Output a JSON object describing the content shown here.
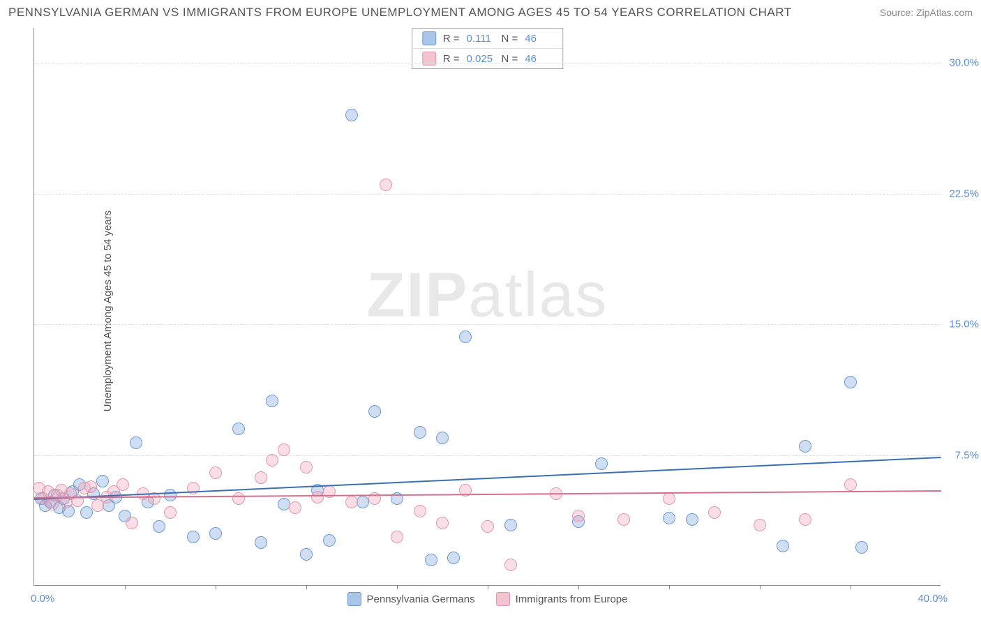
{
  "title": "PENNSYLVANIA GERMAN VS IMMIGRANTS FROM EUROPE UNEMPLOYMENT AMONG AGES 45 TO 54 YEARS CORRELATION CHART",
  "source": "Source: ZipAtlas.com",
  "ylabel": "Unemployment Among Ages 45 to 54 years",
  "watermark_bold": "ZIP",
  "watermark_light": "atlas",
  "chart": {
    "type": "scatter",
    "xlim": [
      0,
      40
    ],
    "ylim": [
      0,
      32
    ],
    "x_left_label": "0.0%",
    "x_right_label": "40.0%",
    "ytick_labels": [
      {
        "v": 7.5,
        "t": "7.5%"
      },
      {
        "v": 15.0,
        "t": "15.0%"
      },
      {
        "v": 22.5,
        "t": "22.5%"
      },
      {
        "v": 30.0,
        "t": "30.0%"
      }
    ],
    "xtick_positions": [
      4,
      8,
      12,
      16,
      20,
      24,
      28,
      32,
      36
    ],
    "grid_color": "#dddddd",
    "axis_color": "#888888",
    "background_color": "#ffffff",
    "marker_radius": 9,
    "marker_border_width": 1.5,
    "series": [
      {
        "name": "Pennsylvania Germans",
        "fill": "rgba(120,160,220,0.35)",
        "stroke": "#6b9bd1",
        "swatch_fill": "#a9c5e8",
        "swatch_border": "#6b9bd1",
        "R": "0.111",
        "N": "46",
        "trend": {
          "x1": 0,
          "y1": 5.0,
          "x2": 40,
          "y2": 7.4,
          "color": "#3a6fb5"
        },
        "points": [
          [
            0.3,
            5.0
          ],
          [
            0.5,
            4.6
          ],
          [
            0.7,
            4.8
          ],
          [
            0.9,
            5.2
          ],
          [
            1.1,
            4.5
          ],
          [
            1.3,
            5.0
          ],
          [
            1.5,
            4.3
          ],
          [
            1.7,
            5.4
          ],
          [
            2.0,
            5.8
          ],
          [
            2.3,
            4.2
          ],
          [
            2.6,
            5.3
          ],
          [
            3.0,
            6.0
          ],
          [
            3.3,
            4.6
          ],
          [
            3.6,
            5.1
          ],
          [
            4.0,
            4.0
          ],
          [
            4.5,
            8.2
          ],
          [
            5.0,
            4.8
          ],
          [
            5.5,
            3.4
          ],
          [
            6.0,
            5.2
          ],
          [
            7.0,
            2.8
          ],
          [
            8.0,
            3.0
          ],
          [
            9.0,
            9.0
          ],
          [
            10.0,
            2.5
          ],
          [
            10.5,
            10.6
          ],
          [
            11.0,
            4.7
          ],
          [
            12.0,
            1.8
          ],
          [
            12.5,
            5.5
          ],
          [
            13.0,
            2.6
          ],
          [
            14.0,
            27.0
          ],
          [
            14.5,
            4.8
          ],
          [
            15.0,
            10.0
          ],
          [
            16.0,
            5.0
          ],
          [
            17.0,
            8.8
          ],
          [
            17.5,
            1.5
          ],
          [
            18.0,
            8.5
          ],
          [
            18.5,
            1.6
          ],
          [
            19.0,
            14.3
          ],
          [
            21.0,
            3.5
          ],
          [
            24.0,
            3.7
          ],
          [
            25.0,
            7.0
          ],
          [
            28.0,
            3.9
          ],
          [
            29.0,
            3.8
          ],
          [
            33.0,
            2.3
          ],
          [
            34.0,
            8.0
          ],
          [
            36.0,
            11.7
          ],
          [
            36.5,
            2.2
          ]
        ]
      },
      {
        "name": "Immigrants from Europe",
        "fill": "rgba(240,160,180,0.35)",
        "stroke": "#e198ac",
        "swatch_fill": "#f3c3cf",
        "swatch_border": "#e198ac",
        "R": "0.025",
        "N": "46",
        "trend": {
          "x1": 0,
          "y1": 5.1,
          "x2": 40,
          "y2": 5.5,
          "color": "#d66f8c"
        },
        "points": [
          [
            0.2,
            5.6
          ],
          [
            0.4,
            5.0
          ],
          [
            0.6,
            5.4
          ],
          [
            0.8,
            4.7
          ],
          [
            1.0,
            5.2
          ],
          [
            1.2,
            5.5
          ],
          [
            1.4,
            4.8
          ],
          [
            1.6,
            5.3
          ],
          [
            1.9,
            4.9
          ],
          [
            2.2,
            5.6
          ],
          [
            2.5,
            5.7
          ],
          [
            2.8,
            4.6
          ],
          [
            3.2,
            5.1
          ],
          [
            3.5,
            5.4
          ],
          [
            3.9,
            5.8
          ],
          [
            4.3,
            3.6
          ],
          [
            4.8,
            5.3
          ],
          [
            5.3,
            5.0
          ],
          [
            6.0,
            4.2
          ],
          [
            7.0,
            5.6
          ],
          [
            8.0,
            6.5
          ],
          [
            9.0,
            5.0
          ],
          [
            10.0,
            6.2
          ],
          [
            10.5,
            7.2
          ],
          [
            11.0,
            7.8
          ],
          [
            11.5,
            4.5
          ],
          [
            12.0,
            6.8
          ],
          [
            12.5,
            5.1
          ],
          [
            13.0,
            5.4
          ],
          [
            14.0,
            4.8
          ],
          [
            15.0,
            5.0
          ],
          [
            15.5,
            23.0
          ],
          [
            16.0,
            2.8
          ],
          [
            17.0,
            4.3
          ],
          [
            18.0,
            3.6
          ],
          [
            19.0,
            5.5
          ],
          [
            20.0,
            3.4
          ],
          [
            21.0,
            1.2
          ],
          [
            23.0,
            5.3
          ],
          [
            24.0,
            4.0
          ],
          [
            26.0,
            3.8
          ],
          [
            28.0,
            5.0
          ],
          [
            30.0,
            4.2
          ],
          [
            32.0,
            3.5
          ],
          [
            34.0,
            3.8
          ],
          [
            36.0,
            5.8
          ]
        ]
      }
    ],
    "bottom_legend": [
      {
        "label": "Pennsylvania Germans",
        "fill": "#a9c5e8",
        "border": "#6b9bd1"
      },
      {
        "label": "Immigrants from Europe",
        "fill": "#f3c3cf",
        "border": "#e198ac"
      }
    ]
  },
  "label_fontsize": 15,
  "title_fontsize": 17,
  "value_color": "#5b8fd6",
  "text_color": "#555555"
}
